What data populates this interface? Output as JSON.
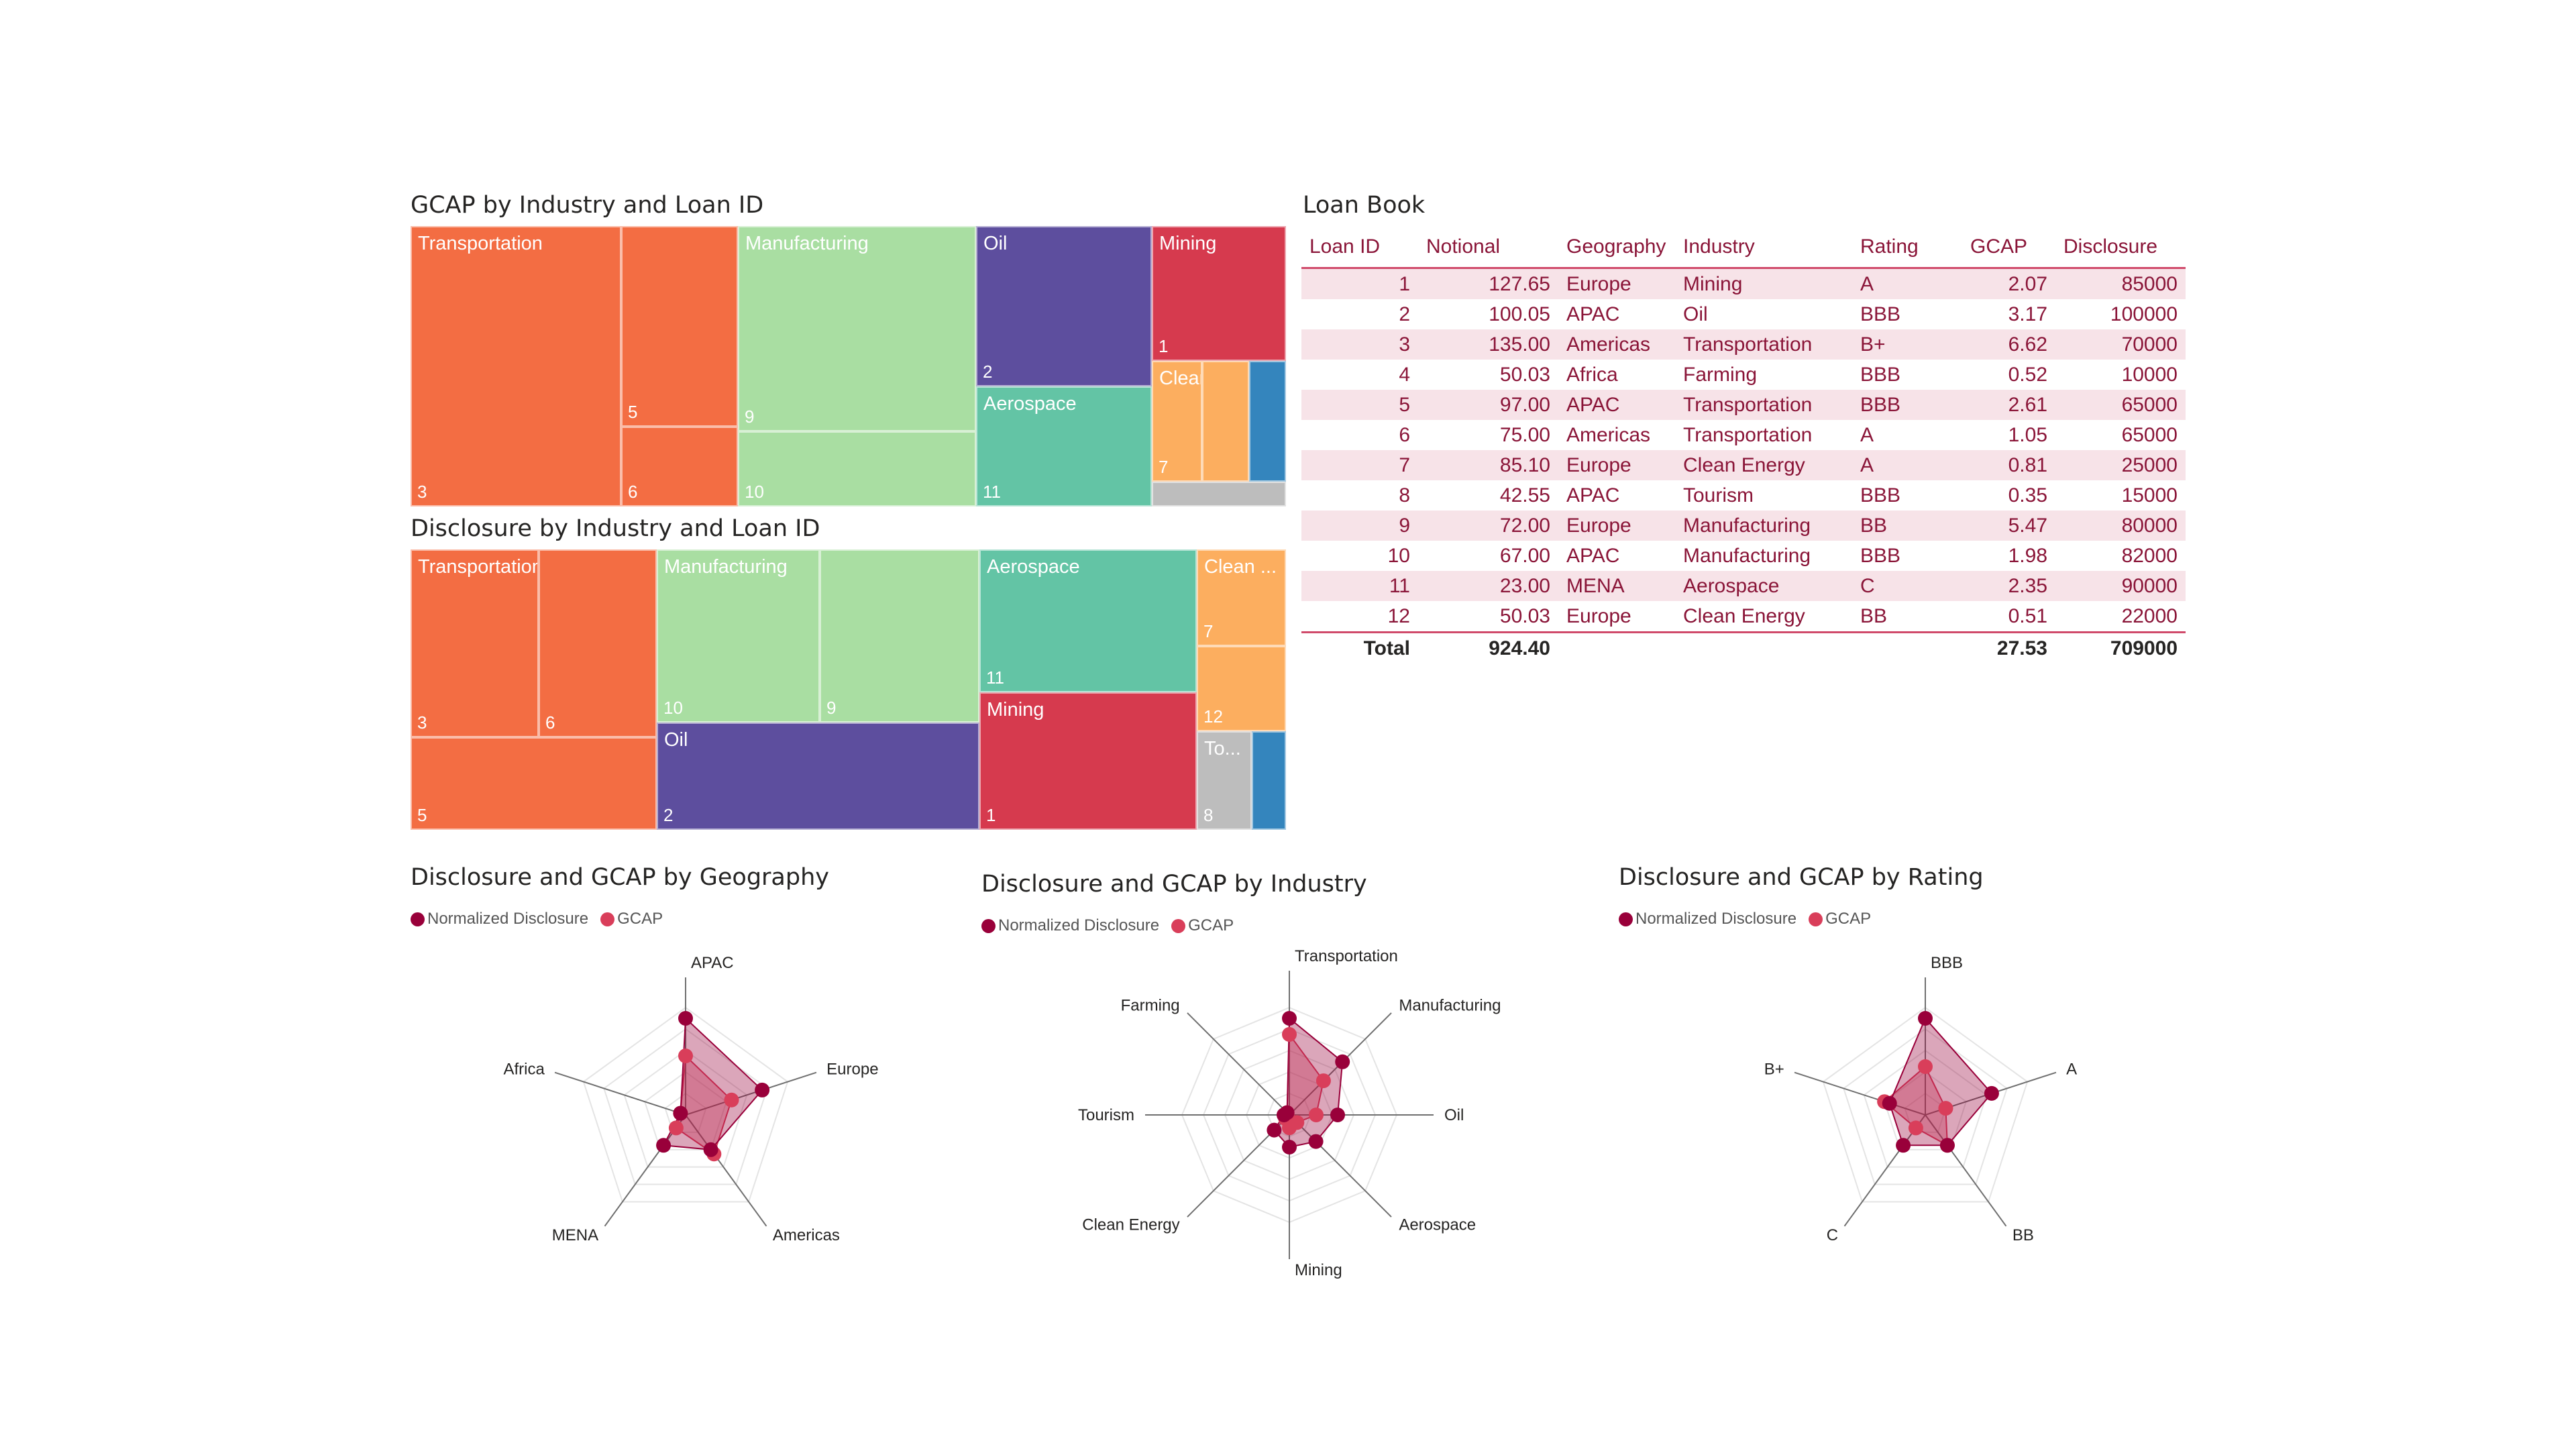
{
  "colors": {
    "Transportation": "#f36d43",
    "Manufacturing": "#a9dea2",
    "Oil": "#5d4e9e",
    "Aerospace": "#63c4a5",
    "Mining": "#d63a4e",
    "Clean Energy": "#fcae5f",
    "Tourism": "#bdbdbd",
    "Farming": "#3485bd",
    "disclosure_series": "#99003a",
    "gcap_series": "#d93e5a"
  },
  "treemap_gcap": {
    "title": "GCAP by Industry and Loan ID",
    "cells": [
      {
        "label": "Transportation",
        "num": "3",
        "color_key": "Transportation"
      },
      {
        "label": "",
        "num": "5",
        "color_key": "Transportation"
      },
      {
        "label": "",
        "num": "6",
        "color_key": "Transportation"
      },
      {
        "label": "Manufacturing",
        "num": "9",
        "color_key": "Manufacturing"
      },
      {
        "label": "",
        "num": "10",
        "color_key": "Manufacturing"
      },
      {
        "label": "Oil",
        "num": "2",
        "color_key": "Oil"
      },
      {
        "label": "Aerospace",
        "num": "11",
        "color_key": "Aerospace"
      },
      {
        "label": "Mining",
        "num": "1",
        "color_key": "Mining"
      },
      {
        "label": "Clean E...",
        "num": "7",
        "color_key": "Clean Energy"
      },
      {
        "label": "",
        "num": "",
        "color_key": "Clean Energy"
      },
      {
        "label": "",
        "num": "",
        "color_key": "Farming"
      },
      {
        "label": "",
        "num": "",
        "color_key": "Tourism"
      }
    ]
  },
  "treemap_disclosure": {
    "title": "Disclosure by Industry and Loan ID",
    "cells": [
      {
        "label": "Transportation",
        "num": "3",
        "color_key": "Transportation"
      },
      {
        "label": "",
        "num": "6",
        "color_key": "Transportation"
      },
      {
        "label": "",
        "num": "5",
        "color_key": "Transportation"
      },
      {
        "label": "Manufacturing",
        "num": "10",
        "color_key": "Manufacturing"
      },
      {
        "label": "",
        "num": "9",
        "color_key": "Manufacturing"
      },
      {
        "label": "Oil",
        "num": "2",
        "color_key": "Oil"
      },
      {
        "label": "Aerospace",
        "num": "11",
        "color_key": "Aerospace"
      },
      {
        "label": "Mining",
        "num": "1",
        "color_key": "Mining"
      },
      {
        "label": "Clean ...",
        "num": "7",
        "color_key": "Clean Energy"
      },
      {
        "label": "",
        "num": "12",
        "color_key": "Clean Energy"
      },
      {
        "label": "To...",
        "num": "8",
        "color_key": "Tourism"
      },
      {
        "label": "",
        "num": "",
        "color_key": "Farming"
      }
    ]
  },
  "loan_book": {
    "title": "Loan Book",
    "columns": [
      "Loan ID",
      "Notional",
      "Geography",
      "Industry",
      "Rating",
      "GCAP",
      "Disclosure"
    ],
    "rows": [
      [
        "1",
        "127.65",
        "Europe",
        "Mining",
        "A",
        "2.07",
        "85000"
      ],
      [
        "2",
        "100.05",
        "APAC",
        "Oil",
        "BBB",
        "3.17",
        "100000"
      ],
      [
        "3",
        "135.00",
        "Americas",
        "Transportation",
        "B+",
        "6.62",
        "70000"
      ],
      [
        "4",
        "50.03",
        "Africa",
        "Farming",
        "BBB",
        "0.52",
        "10000"
      ],
      [
        "5",
        "97.00",
        "APAC",
        "Transportation",
        "BBB",
        "2.61",
        "65000"
      ],
      [
        "6",
        "75.00",
        "Americas",
        "Transportation",
        "A",
        "1.05",
        "65000"
      ],
      [
        "7",
        "85.10",
        "Europe",
        "Clean Energy",
        "A",
        "0.81",
        "25000"
      ],
      [
        "8",
        "42.55",
        "APAC",
        "Tourism",
        "BBB",
        "0.35",
        "15000"
      ],
      [
        "9",
        "72.00",
        "Europe",
        "Manufacturing",
        "BB",
        "5.47",
        "80000"
      ],
      [
        "10",
        "67.00",
        "APAC",
        "Manufacturing",
        "BBB",
        "1.98",
        "82000"
      ],
      [
        "11",
        "23.00",
        "MENA",
        "Aerospace",
        "C",
        "2.35",
        "90000"
      ],
      [
        "12",
        "50.03",
        "Europe",
        "Clean Energy",
        "BB",
        "0.51",
        "22000"
      ]
    ],
    "total": {
      "label": "Total",
      "notional": "924.40",
      "gcap": "27.53",
      "disclosure": "709000"
    }
  },
  "legend": {
    "disclosure": "Normalized Disclosure",
    "gcap": "GCAP"
  },
  "chart_data": [
    {
      "type": "radar",
      "title": "Disclosure and GCAP by Geography",
      "axes": [
        "APAC",
        "Europe",
        "Americas",
        "MENA",
        "Africa"
      ],
      "series": [
        {
          "name": "Normalized Disclosure",
          "values": [
            0.9,
            0.75,
            0.4,
            0.35,
            0.05
          ]
        },
        {
          "name": "GCAP",
          "values": [
            0.55,
            0.45,
            0.45,
            0.15,
            0.05
          ]
        }
      ]
    },
    {
      "type": "radar",
      "title": "Disclosure and GCAP by Industry",
      "axes": [
        "Transportation",
        "Manufacturing",
        "Oil",
        "Aerospace",
        "Mining",
        "Clean Energy",
        "Tourism",
        "Farming"
      ],
      "series": [
        {
          "name": "Normalized Disclosure",
          "values": [
            0.9,
            0.7,
            0.45,
            0.35,
            0.3,
            0.2,
            0.05,
            0.03
          ]
        },
        {
          "name": "GCAP",
          "values": [
            0.75,
            0.45,
            0.25,
            0.1,
            0.12,
            0.05,
            0.02,
            0.03
          ]
        }
      ]
    },
    {
      "type": "radar",
      "title": "Disclosure and GCAP by Rating",
      "axes": [
        "BBB",
        "A",
        "BB",
        "C",
        "B+"
      ],
      "series": [
        {
          "name": "Normalized Disclosure",
          "values": [
            0.9,
            0.65,
            0.35,
            0.35,
            0.35
          ]
        },
        {
          "name": "GCAP",
          "values": [
            0.45,
            0.2,
            0.35,
            0.15,
            0.4
          ]
        }
      ]
    }
  ]
}
